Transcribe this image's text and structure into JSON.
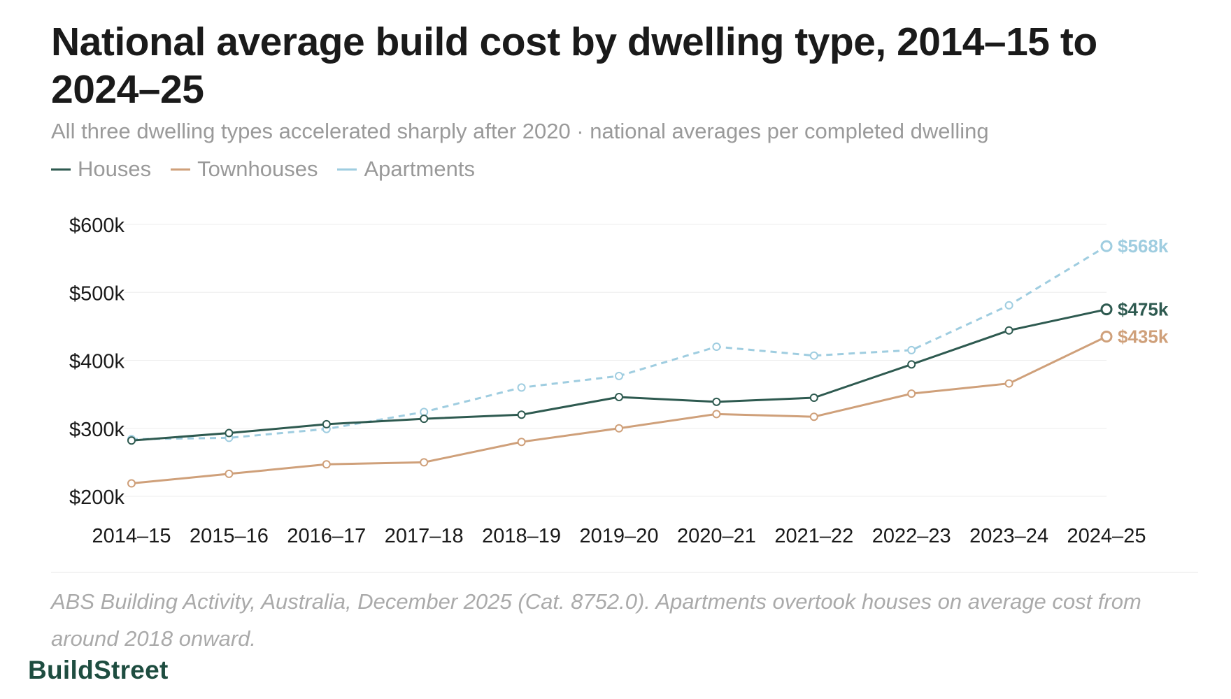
{
  "header": {
    "title": "National average build cost by dwelling type, 2014–15 to 2024–25",
    "subtitle": "All three dwelling types accelerated sharply after 2020 · national averages per completed dwelling"
  },
  "legend": {
    "items": [
      {
        "label": "Houses",
        "color": "#2e5a50"
      },
      {
        "label": "Townhouses",
        "color": "#cfa07a"
      },
      {
        "label": "Apartments",
        "color": "#9fcde0"
      }
    ]
  },
  "chart_data": {
    "type": "line",
    "title": "National average build cost by dwelling type, 2014–15 to 2024–25",
    "subtitle": "All three dwelling types accelerated sharply after 2020 · national averages per completed dwelling",
    "xlabel": "",
    "ylabel": "",
    "categories": [
      "2014–15",
      "2015–16",
      "2016–17",
      "2017–18",
      "2018–19",
      "2019–20",
      "2020–21",
      "2021–22",
      "2022–23",
      "2023–24",
      "2024–25"
    ],
    "ylim": [
      200000,
      600000
    ],
    "yticks": [
      200000,
      300000,
      400000,
      500000,
      600000
    ],
    "ytick_labels": [
      "$200k",
      "$300k",
      "$400k",
      "$500k",
      "$600k"
    ],
    "grid": true,
    "legend_position": "top-left",
    "series": [
      {
        "name": "Houses",
        "color": "#2e5a50",
        "dashed": false,
        "end_label": "$475k",
        "values": [
          282000,
          293000,
          306000,
          314000,
          320000,
          346000,
          339000,
          345000,
          394000,
          444000,
          475000
        ]
      },
      {
        "name": "Townhouses",
        "color": "#cfa07a",
        "dashed": false,
        "end_label": "$435k",
        "values": [
          219000,
          233000,
          247000,
          250000,
          280000,
          300000,
          321000,
          317000,
          351000,
          366000,
          435000
        ]
      },
      {
        "name": "Apartments",
        "color": "#9fcde0",
        "dashed": true,
        "end_label": "$568k",
        "values": [
          284000,
          286000,
          299000,
          324000,
          360000,
          377000,
          420000,
          407000,
          415000,
          481000,
          568000
        ]
      }
    ]
  },
  "footer": {
    "note": "ABS Building Activity, Australia, December 2025 (Cat. 8752.0). Apartments overtook houses on average cost from around 2018 onward.",
    "brand": "BuildStreet"
  }
}
